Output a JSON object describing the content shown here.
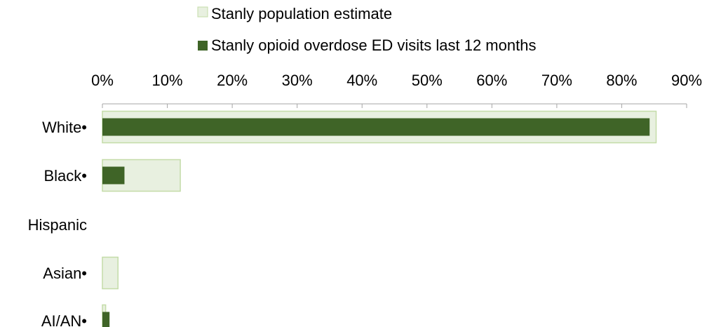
{
  "chart_data": {
    "type": "bar",
    "orientation": "horizontal",
    "categories": [
      "White•",
      "Black•",
      "Hispanic",
      "Asian•",
      "AI/AN•"
    ],
    "series": [
      {
        "name": "Stanly population estimate",
        "values": [
          85.3,
          12.0,
          0,
          2.4,
          0.5
        ],
        "color": "#e8f0e0",
        "border_color": "#c4dca8"
      },
      {
        "name": "Stanly opioid overdose ED visits last 12 months",
        "values": [
          84.3,
          3.4,
          0,
          0,
          1.1
        ],
        "color": "#3f6427"
      }
    ],
    "xlim": [
      0,
      90
    ],
    "x_ticks": [
      "0%",
      "10%",
      "20%",
      "30%",
      "40%",
      "50%",
      "60%",
      "70%",
      "80%",
      "90%"
    ],
    "axis_position": "top",
    "grid": false,
    "legend_position": "top"
  }
}
